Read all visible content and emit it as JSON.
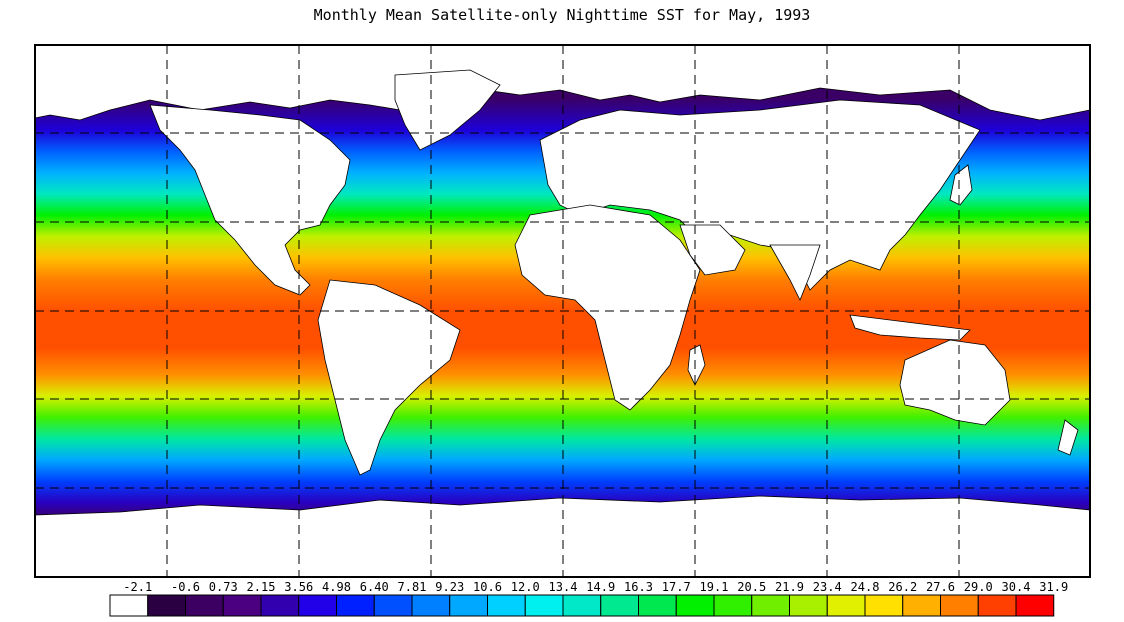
{
  "title": "Monthly Mean Satellite-only Nighttime SST for May, 1993",
  "legend": {
    "labels": [
      "-2.1",
      "-0.6",
      "0.73",
      "2.15",
      "3.56",
      "4.98",
      "6.40",
      "7.81",
      "9.23",
      "10.6",
      "12.0",
      "13.4",
      "14.9",
      "16.3",
      "17.7",
      "19.1",
      "20.5",
      "21.9",
      "23.4",
      "24.8",
      "26.2",
      "27.6",
      "29.0",
      "30.4",
      "31.9"
    ],
    "colors": [
      "#ffffff",
      "#2b0042",
      "#3c0063",
      "#4a0080",
      "#3300b0",
      "#2200e8",
      "#0020ff",
      "#0050ff",
      "#0080ff",
      "#00a8ff",
      "#00d0ff",
      "#00f0f0",
      "#00e8c8",
      "#00e890",
      "#00e850",
      "#00f000",
      "#30f000",
      "#70f000",
      "#a8f000",
      "#e0f000",
      "#ffe000",
      "#ffb000",
      "#ff8000",
      "#ff4000",
      "#ff0000"
    ]
  },
  "map": {
    "grid_lines": "dashed",
    "land_color": "#ffffff",
    "ice_color": "#ffffff"
  }
}
